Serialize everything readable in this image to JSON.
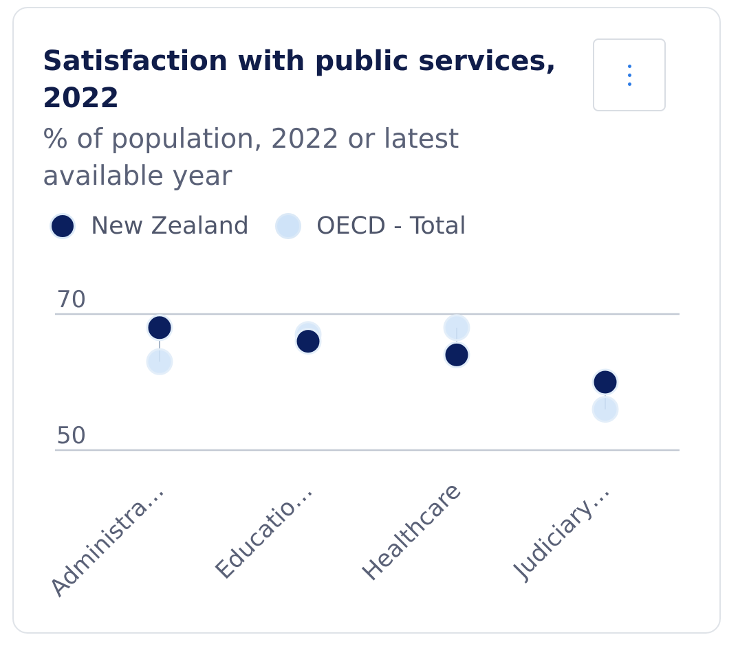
{
  "card": {
    "title": "Satisfaction with public services, 2022",
    "subtitle": "% of population, 2022 or latest available year",
    "menu_icon": "vertical-ellipsis-icon"
  },
  "colors": {
    "new_zealand": "#0b1f5e",
    "oecd_total": "#cfe3f8",
    "gridline": "#c3cad4",
    "axis_text": "#5a6177",
    "title_text": "#101d4a",
    "menu_dots": "#2c7be5"
  },
  "chart_data": {
    "type": "scatter",
    "title": "Satisfaction with public services, 2022",
    "subtitle": "% of population, 2022 or latest available year",
    "categories": [
      "Administra…",
      "Educatio…",
      "Healthcare",
      "Judiciary…"
    ],
    "series": [
      {
        "name": "New Zealand",
        "values": [
          68,
          66,
          64,
          60
        ]
      },
      {
        "name": "OECD - Total",
        "values": [
          63,
          67,
          68,
          56
        ]
      }
    ],
    "yticks": [
      50,
      70
    ],
    "ylim": [
      50,
      70
    ],
    "grid": true,
    "legend_position": "top-left"
  }
}
